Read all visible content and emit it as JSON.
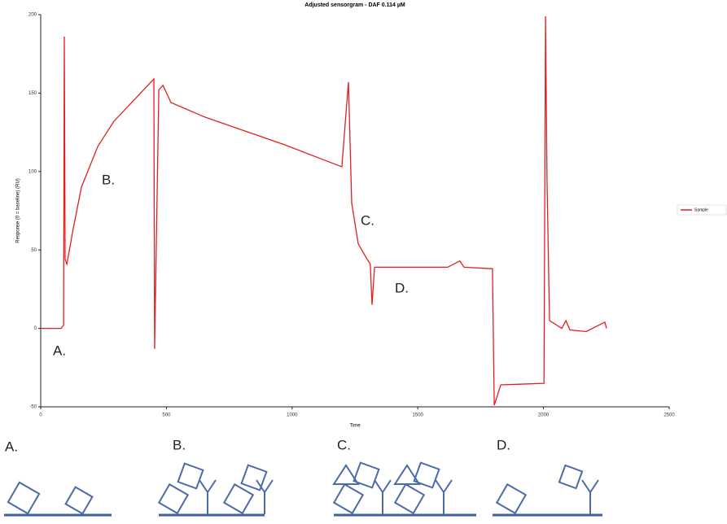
{
  "chart_data": {
    "type": "line",
    "title": "Adjusted sensorgram - DAF 0.114 µM",
    "x_label": "Time",
    "y_label": "Response (0 = baseline) (RU)",
    "x": [
      0,
      81,
      91,
      94,
      97,
      104,
      130,
      162,
      227,
      291,
      356,
      450,
      453,
      470,
      486,
      518,
      648,
      810,
      971,
      1133,
      1198,
      1224,
      1237,
      1263,
      1295,
      1311,
      1318,
      1328,
      1392,
      1619,
      1667,
      1684,
      1797,
      1804,
      1830,
      2002,
      2008,
      2014,
      2024,
      2073,
      2089,
      2105,
      2170,
      2244,
      2251
    ],
    "series": [
      {
        "name": "Sample",
        "color": "#e02020",
        "values": [
          0,
          0,
          2,
          186,
          44,
          41,
          64,
          90,
          116,
          132,
          143,
          159,
          -13,
          152,
          155,
          144,
          135,
          126,
          117,
          107,
          103,
          157,
          80,
          54,
          45,
          41,
          15,
          39,
          39,
          39,
          43,
          39,
          38,
          -49,
          -36,
          -35,
          199,
          95,
          5,
          0,
          5,
          -1,
          -2,
          4,
          0
        ]
      }
    ],
    "xlim": [
      0,
      2500
    ],
    "xticks": [
      0,
      500,
      1000,
      1500,
      2000,
      2500
    ],
    "ylim": [
      -50,
      200
    ],
    "yticks": [
      -50,
      0,
      50,
      100,
      150,
      200
    ],
    "legend": "right",
    "annotations": [
      "A.",
      "B.",
      "C.",
      "D."
    ]
  },
  "panels": [
    "A.",
    "B.",
    "C.",
    "D."
  ]
}
